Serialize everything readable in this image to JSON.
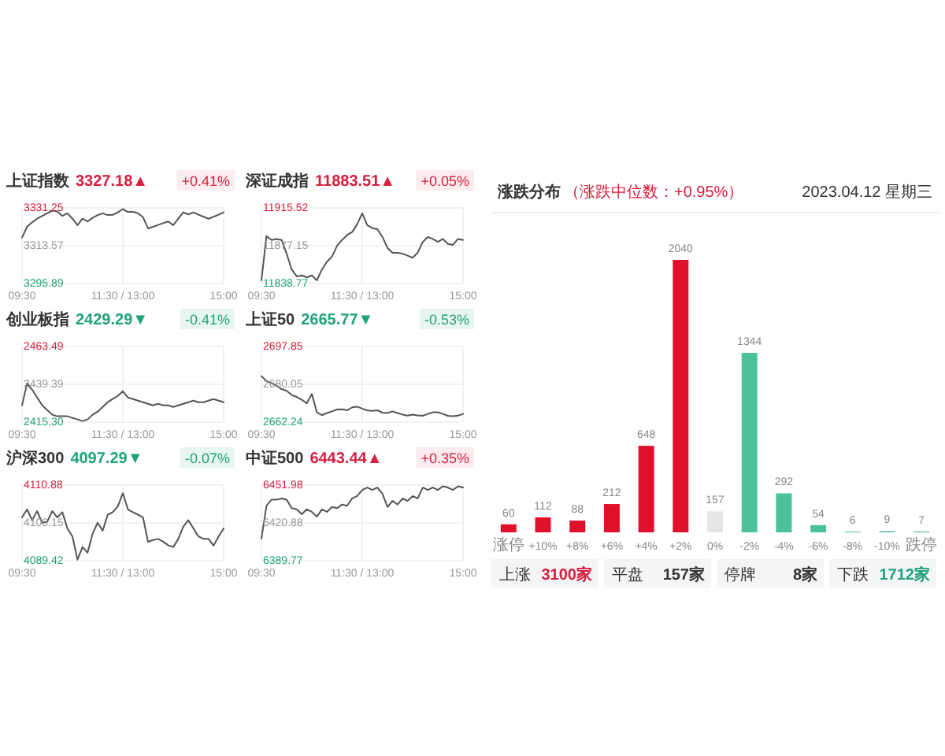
{
  "chart_data": [
    {
      "type": "line",
      "title": "上证指数",
      "subtitle": "3327.18▲",
      "annotations": [
        "+0.41%"
      ],
      "color": "#555555",
      "grid": true,
      "ylim": [
        3295.89,
        3331.25
      ],
      "yticks": [
        3295.89,
        3313.57,
        3331.25
      ],
      "categories": [
        "09:30",
        null,
        null,
        null,
        null,
        null,
        null,
        null,
        null,
        null,
        null,
        null,
        null,
        null,
        null,
        null,
        null,
        null,
        null,
        null,
        "11:30 / 13:00",
        null,
        null,
        null,
        null,
        null,
        null,
        null,
        null,
        null,
        null,
        null,
        null,
        null,
        null,
        null,
        null,
        null,
        null,
        null,
        "15:00"
      ],
      "values": [
        3317.4,
        3322.4,
        3324.5,
        3326.2,
        3327.5,
        3328.7,
        3330.0,
        3329.6,
        3327.5,
        3328.7,
        3326.2,
        3323.2,
        3326.2,
        3324.9,
        3326.6,
        3327.9,
        3328.7,
        3327.9,
        3328.0,
        3329.2,
        3330.7,
        3329.4,
        3329.4,
        3328.8,
        3326.9,
        3321.7,
        3322.4,
        3323.3,
        3324.1,
        3324.9,
        3323.2,
        3326.2,
        3329.2,
        3328.2,
        3329.2,
        3328.1,
        3327.1,
        3326.2,
        3327.1,
        3328.1,
        3329.2
      ]
    },
    {
      "type": "line",
      "title": "深证成指",
      "subtitle": "11883.51▲",
      "annotations": [
        "+0.05%"
      ],
      "color": "#555555",
      "grid": true,
      "ylim": [
        11838.77,
        11915.52
      ],
      "yticks": [
        11838.77,
        11877.15,
        11915.52
      ],
      "categories": [
        "09:30",
        null,
        null,
        null,
        null,
        null,
        null,
        null,
        null,
        null,
        null,
        null,
        null,
        null,
        null,
        null,
        null,
        null,
        null,
        null,
        "11:30 / 13:00",
        null,
        null,
        null,
        null,
        null,
        null,
        null,
        null,
        null,
        null,
        null,
        null,
        null,
        null,
        null,
        null,
        null,
        null,
        null,
        "15:00"
      ],
      "values": [
        11842,
        11887,
        11883,
        11884,
        11883,
        11869,
        11853,
        11846,
        11847,
        11845,
        11847,
        11842,
        11853,
        11861,
        11866,
        11877,
        11883,
        11888,
        11891,
        11899,
        11910,
        11898,
        11895,
        11894,
        11886,
        11875,
        11870,
        11870,
        11869,
        11867,
        11865,
        11870,
        11881,
        11886,
        11884,
        11881,
        11884,
        11879,
        11878,
        11884,
        11883
      ]
    },
    {
      "type": "line",
      "title": "创业板指",
      "subtitle": "2429.29▼",
      "annotations": [
        "-0.41%"
      ],
      "color": "#555555",
      "grid": true,
      "ylim": [
        2415.3,
        2463.49
      ],
      "yticks": [
        {
          "value": 2415.3,
          "label": "2415.30"
        },
        2439.39,
        2463.49
      ],
      "categories": [
        "09:30",
        null,
        null,
        null,
        null,
        null,
        null,
        null,
        null,
        null,
        null,
        null,
        null,
        null,
        null,
        null,
        null,
        null,
        null,
        null,
        "11:30 / 13:00",
        null,
        null,
        null,
        null,
        null,
        null,
        null,
        null,
        null,
        null,
        null,
        null,
        null,
        null,
        null,
        null,
        null,
        null,
        null,
        "15:00"
      ],
      "values": [
        2426,
        2440,
        2436,
        2431,
        2426,
        2423,
        2420,
        2419,
        2419,
        2419,
        2418,
        2417,
        2416,
        2417,
        2420,
        2422,
        2425,
        2428,
        2430,
        2432,
        2435,
        2431,
        2430,
        2429,
        2428,
        2427,
        2426,
        2427,
        2426,
        2426,
        2425,
        2426,
        2427,
        2428,
        2429,
        2428,
        2428,
        2429,
        2430,
        2429,
        2428
      ]
    },
    {
      "type": "line",
      "title": "上证50",
      "subtitle": "2665.77▼",
      "annotations": [
        "-0.53%"
      ],
      "color": "#555555",
      "grid": true,
      "ylim": [
        2662.24,
        2697.85
      ],
      "yticks": [
        2662.24,
        2680.05,
        2697.85
      ],
      "categories": [
        "09:30",
        null,
        null,
        null,
        null,
        null,
        null,
        null,
        null,
        null,
        null,
        null,
        null,
        null,
        null,
        null,
        null,
        null,
        null,
        null,
        "11:30 / 13:00",
        null,
        null,
        null,
        null,
        null,
        null,
        null,
        null,
        null,
        null,
        null,
        null,
        null,
        null,
        null,
        null,
        null,
        null,
        null,
        "15:00"
      ],
      "values": [
        2683.9,
        2681.6,
        2680.6,
        2679.4,
        2677.8,
        2677.0,
        2675.0,
        2674.1,
        2672.8,
        2671.1,
        2675.5,
        2666.8,
        2665.5,
        2666.5,
        2667.3,
        2668.2,
        2668.3,
        2667.8,
        2669.2,
        2669.5,
        2668.6,
        2667.7,
        2667.5,
        2667.8,
        2666.7,
        2666.5,
        2667.3,
        2666.5,
        2665.8,
        2665.3,
        2665.8,
        2665.4,
        2665.2,
        2666.1,
        2666.9,
        2666.9,
        2666.1,
        2665.2,
        2665.0,
        2665.3,
        2666.1
      ]
    },
    {
      "type": "line",
      "title": "沪深300",
      "subtitle": "4097.29▼",
      "annotations": [
        "-0.07%"
      ],
      "color": "#555555",
      "grid": true,
      "ylim": [
        4089.42,
        4110.88
      ],
      "yticks": [
        4089.42,
        4100.15,
        4110.88
      ],
      "categories": [
        "09:30",
        null,
        null,
        null,
        null,
        null,
        null,
        null,
        null,
        null,
        null,
        null,
        null,
        null,
        null,
        null,
        null,
        null,
        null,
        null,
        "11:30 / 13:00",
        null,
        null,
        null,
        null,
        null,
        null,
        null,
        null,
        null,
        null,
        null,
        null,
        null,
        null,
        null,
        null,
        null,
        null,
        null,
        "15:00"
      ],
      "values": [
        4101.7,
        4104.0,
        4100.9,
        4103.5,
        4100.2,
        4100.5,
        4103.5,
        4101.7,
        4103.2,
        4098.6,
        4096.3,
        4089.7,
        4093.3,
        4091.7,
        4097.1,
        4100.2,
        4097.9,
        4102.5,
        4103.2,
        4104.8,
        4108.6,
        4104.0,
        4103.2,
        4102.5,
        4101.7,
        4094.8,
        4095.3,
        4095.6,
        4094.8,
        4093.8,
        4093.3,
        4095.6,
        4099.1,
        4100.9,
        4098.6,
        4096.3,
        4095.6,
        4095.6,
        4093.7,
        4096.3,
        4098.6
      ]
    },
    {
      "type": "line",
      "title": "中证500",
      "subtitle": "6443.44▲",
      "annotations": [
        "+0.35%"
      ],
      "color": "#555555",
      "grid": true,
      "ylim": [
        6389.77,
        6451.98
      ],
      "yticks": [
        6389.77,
        6420.88,
        6451.98
      ],
      "categories": [
        "09:30",
        null,
        null,
        null,
        null,
        null,
        null,
        null,
        null,
        null,
        null,
        null,
        null,
        null,
        null,
        null,
        null,
        null,
        null,
        null,
        "11:30 / 13:00",
        null,
        null,
        null,
        null,
        null,
        null,
        null,
        null,
        null,
        null,
        null,
        null,
        null,
        null,
        null,
        null,
        null,
        null,
        null,
        "15:00"
      ],
      "values": [
        6408,
        6435,
        6440,
        6440,
        6441,
        6440,
        6433,
        6432,
        6428,
        6432,
        6430,
        6426,
        6432,
        6430,
        6434,
        6433,
        6436,
        6435,
        6441,
        6443,
        6448,
        6450,
        6448,
        6450,
        6445,
        6434,
        6439,
        6436,
        6441,
        6439,
        6443,
        6441,
        6450,
        6448,
        6450,
        6448,
        6451,
        6450,
        6448,
        6451,
        6450
      ]
    },
    {
      "type": "bar",
      "title": "涨跌分布",
      "subtitle": "（涨跌中位数：+0.95%）",
      "annotations": [
        "2023.04.12 星期三",
        "上涨",
        "3100家",
        "平盘",
        "157家",
        "停牌",
        "8家",
        "下跌",
        "1712家"
      ],
      "data_labels": true,
      "categories": [
        "涨停",
        "+10%",
        "+8%",
        "+6%",
        "+4%",
        "+2%",
        "0%",
        "-2%",
        "-4%",
        "-6%",
        "-8%",
        "-10%",
        "跌停"
      ],
      "values": [
        60,
        112,
        88,
        212,
        648,
        2040,
        157,
        1344,
        292,
        54,
        6,
        9,
        7
      ],
      "colors": [
        "#e0102b",
        "#e0102b",
        "#e0102b",
        "#e0102b",
        "#e0102b",
        "#e0102b",
        "#e6e6e6",
        "#4cc29b",
        "#4cc29b",
        "#4cc29b",
        "#4cc29b",
        "#4cc29b",
        "#4cc29b"
      ]
    }
  ]
}
